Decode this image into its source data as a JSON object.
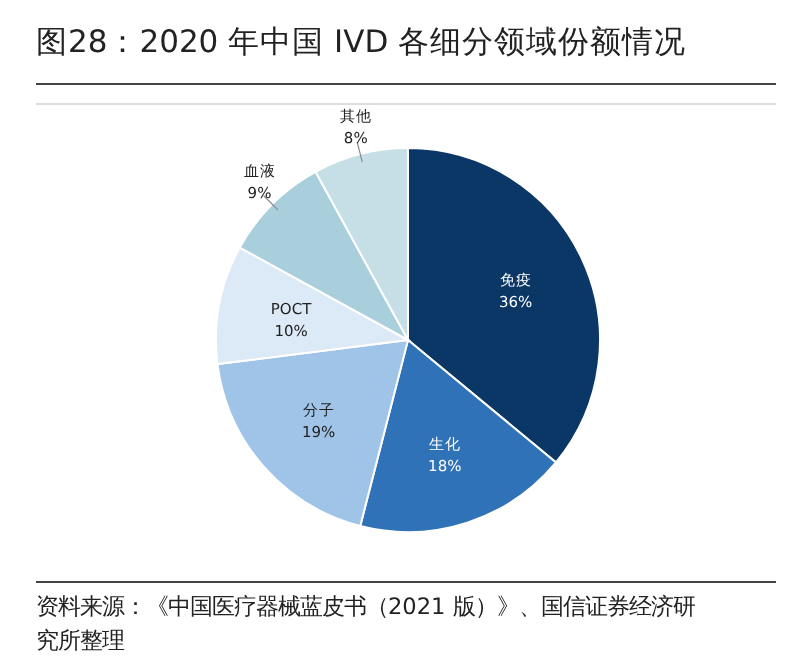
{
  "chart_data": {
    "type": "pie",
    "title": "图28：2020 年中国 IVD 各细分领域份额情况",
    "categories": [
      "免疫",
      "生化",
      "分子",
      "POCT",
      "血液",
      "其他"
    ],
    "values": [
      36,
      18,
      19,
      10,
      9,
      8
    ],
    "colors": [
      "#0b3766",
      "#2f72b7",
      "#9fc4e7",
      "#dce9f6",
      "#a9cedc",
      "#c6dfe6"
    ],
    "value_labels": [
      "36%",
      "18%",
      "19%",
      "10%",
      "9%",
      "8%"
    ],
    "annotations": [
      "资料来源：《中国医疗器械蓝皮书（2021 版）》、国信证券经济研究所整理"
    ]
  }
}
